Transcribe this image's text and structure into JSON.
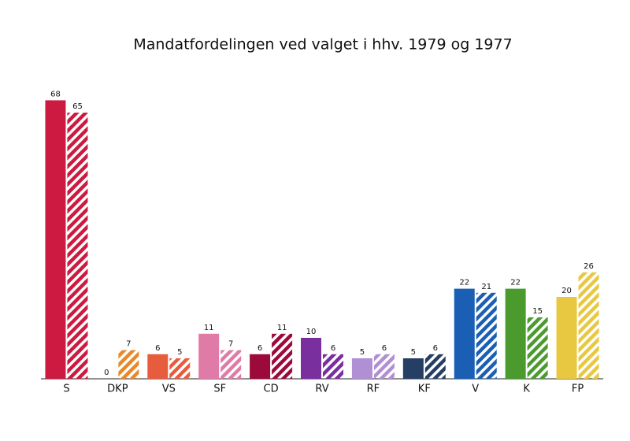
{
  "chart_data": {
    "type": "bar",
    "title": "Mandatfordelingen ved valget i hhv. 1979 og 1977",
    "categories": [
      "S",
      "DKP",
      "VS",
      "SF",
      "CD",
      "RV",
      "RF",
      "KF",
      "V",
      "K",
      "FP"
    ],
    "colors": [
      "#cc1a40",
      "#e8892b",
      "#e85c3e",
      "#e07ba8",
      "#9c0a3c",
      "#7a2f9e",
      "#b08fd4",
      "#243f63",
      "#1a5fb4",
      "#4a9a2e",
      "#e8c840"
    ],
    "series": [
      {
        "pattern": "solid",
        "values": [
          68,
          0,
          6,
          11,
          6,
          10,
          5,
          5,
          22,
          22,
          20
        ]
      },
      {
        "pattern": "striped",
        "values": [
          65,
          7,
          5,
          7,
          11,
          6,
          6,
          6,
          21,
          15,
          26
        ]
      }
    ]
  }
}
